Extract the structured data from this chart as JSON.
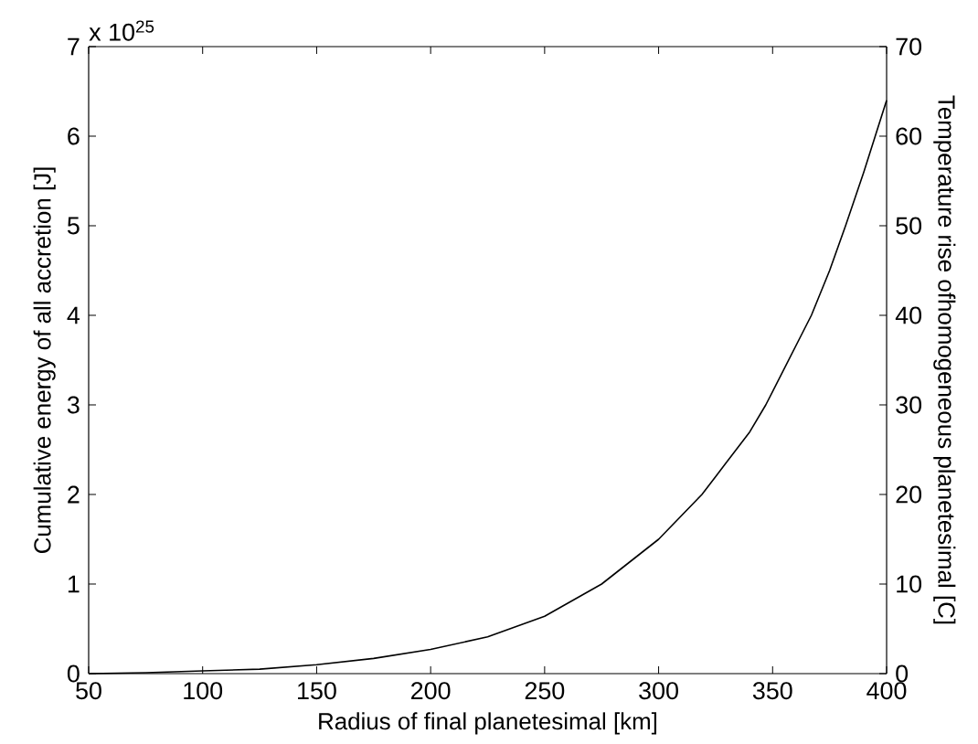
{
  "chart_data": {
    "type": "line",
    "xlabel": "Radius of final planetesimal [km]",
    "ylabel": "Cumulative energy of all accretion [J]",
    "y2label": "Temperature rise ofhomogeneous planetesimal [C]",
    "annotations": [
      "x 10$^{25}$"
    ],
    "x": [
      50,
      75,
      100,
      125,
      150,
      175,
      200,
      225,
      250,
      275,
      300,
      319,
      325,
      340,
      347,
      350,
      367,
      375,
      382,
      390,
      395,
      400
    ],
    "series": [
      {
        "color": "#000000",
        "values": [
          0,
          0.01,
          0.03,
          0.05,
          0.1,
          0.17,
          0.27,
          0.41,
          0.64,
          1.0,
          1.5,
          2.0,
          2.2,
          2.7,
          3.0,
          3.15,
          4.0,
          4.5,
          5.0,
          5.6,
          6.0,
          6.4
        ]
      }
    ],
    "xlim": [
      50,
      400
    ],
    "xticks": [
      50,
      100,
      150,
      200,
      250,
      300,
      350,
      400
    ],
    "ylim": [
      0,
      7
    ],
    "yticks": [
      0,
      1,
      2,
      3,
      4,
      5,
      6,
      7
    ],
    "y2lim": [
      0,
      70
    ],
    "y2ticks": [
      0,
      10,
      20,
      30,
      40,
      50,
      60,
      70
    ],
    "marker": "none",
    "line_style": "solid"
  }
}
